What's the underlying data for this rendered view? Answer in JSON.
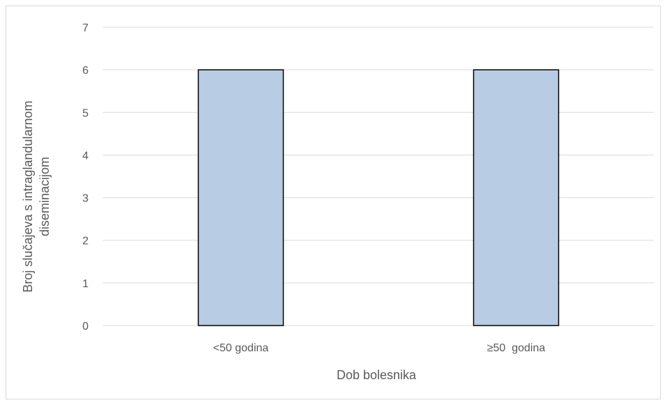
{
  "chart_data": {
    "type": "bar",
    "title": "",
    "categories": [
      "<50 godina",
      "≥50  godina"
    ],
    "values": [
      6,
      6
    ],
    "xlabel": "Dob bolesnika",
    "ylabel_lines": [
      "Broj slučajeva s intraglandularnom",
      "diseminacijom"
    ],
    "ylim": [
      0,
      7
    ],
    "yticks": [
      "0",
      "1",
      "2",
      "3",
      "4",
      "5",
      "6",
      "7"
    ],
    "grid": true,
    "legend": "none",
    "colors": {
      "bar_fill": "#b8cce4",
      "bar_stroke": "#000000",
      "grid": "#d9d9d9",
      "text": "#595959"
    }
  }
}
